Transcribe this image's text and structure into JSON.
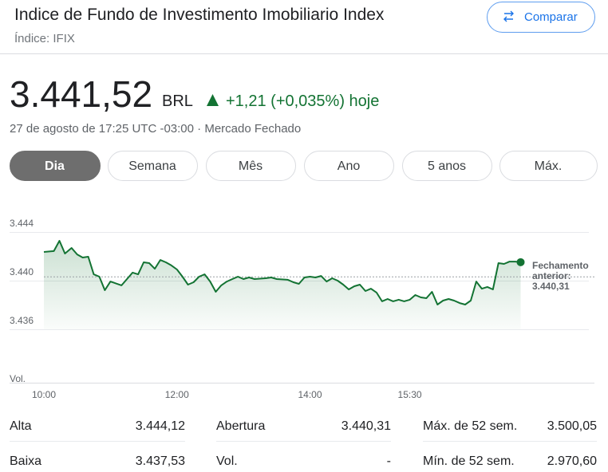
{
  "header": {
    "title": "Indice de Fundo de Investimento Imobiliario Index",
    "subtitle": "Índice: IFIX",
    "compare_button": "Comparar"
  },
  "quote": {
    "price": "3.441,52",
    "currency": "BRL",
    "change": "+1,21 (+0,035%) hoje",
    "timestamp": "27 de agosto de 17:25 UTC -03:00 · Mercado Fechado"
  },
  "tabs": {
    "items": [
      "Dia",
      "Semana",
      "Mês",
      "Ano",
      "5 anos",
      "Máx."
    ],
    "selected": 0
  },
  "chart_data": {
    "type": "line",
    "color": "#137333",
    "x": [
      "10:00",
      "10:09",
      "10:14",
      "10:19",
      "10:25",
      "10:30",
      "10:35",
      "10:40",
      "10:45",
      "10:50",
      "10:55",
      "11:00",
      "11:10",
      "11:20",
      "11:25",
      "11:30",
      "11:35",
      "11:40",
      "11:45",
      "11:50",
      "11:55",
      "12:00",
      "12:05",
      "12:10",
      "12:15",
      "12:20",
      "12:25",
      "12:30",
      "12:35",
      "12:40",
      "12:45",
      "12:50",
      "12:55",
      "13:00",
      "13:05",
      "13:10",
      "13:20",
      "13:25",
      "13:30",
      "13:40",
      "13:45",
      "13:50",
      "13:55",
      "14:00",
      "14:05",
      "14:10",
      "14:15",
      "14:20",
      "14:25",
      "14:30",
      "14:35",
      "14:40",
      "14:45",
      "14:50",
      "14:55",
      "15:00",
      "15:05",
      "15:10",
      "15:15",
      "15:20",
      "15:25",
      "15:30",
      "15:35",
      "15:40",
      "15:45",
      "15:50",
      "15:55",
      "16:00",
      "16:05",
      "16:10",
      "16:15",
      "16:20",
      "16:25",
      "16:30",
      "16:35",
      "16:40",
      "16:45",
      "16:50",
      "16:55",
      "17:00",
      "17:05",
      "17:10"
    ],
    "values": [
      3442.36,
      3442.43,
      3443.28,
      3442.23,
      3442.69,
      3442.16,
      3441.9,
      3441.97,
      3440.52,
      3440.33,
      3439.21,
      3439.93,
      3439.61,
      3440.66,
      3440.52,
      3441.51,
      3441.44,
      3440.98,
      3441.7,
      3441.51,
      3441.25,
      3440.92,
      3440.33,
      3439.67,
      3439.87,
      3440.33,
      3440.52,
      3439.93,
      3439.08,
      3439.61,
      3439.93,
      3440.13,
      3440.33,
      3440.13,
      3440.26,
      3440.13,
      3440.2,
      3440.26,
      3440.13,
      3440.07,
      3439.87,
      3439.74,
      3440.26,
      3440.33,
      3440.26,
      3440.39,
      3439.93,
      3440.2,
      3440.0,
      3439.67,
      3439.28,
      3439.54,
      3439.67,
      3439.15,
      3439.34,
      3439.02,
      3438.3,
      3438.49,
      3438.3,
      3438.43,
      3438.3,
      3438.43,
      3438.82,
      3438.62,
      3438.56,
      3439.08,
      3438.03,
      3438.36,
      3438.49,
      3438.36,
      3438.16,
      3438.03,
      3438.36,
      3439.93,
      3439.34,
      3439.48,
      3439.28,
      3441.44,
      3441.38,
      3441.57,
      3441.57,
      3441.52
    ],
    "xlim": [
      "10:00",
      "18:00"
    ],
    "xticks": [
      "10:00",
      "12:00",
      "14:00",
      "15:30"
    ],
    "ylim": [
      3436,
      3444
    ],
    "yticks": [
      {
        "value": 3444,
        "label": "3.444"
      },
      {
        "value": 3440,
        "label": "3.440"
      },
      {
        "value": 3436,
        "label": "3.436"
      }
    ],
    "grid": true,
    "volume_label": "Vol.",
    "previous_close": {
      "label": "Fechamento anterior:",
      "value": 3440.31,
      "value_label": "3.440,31"
    }
  },
  "stats": {
    "rows": [
      [
        [
          "Alta",
          "3.444,12"
        ],
        [
          "Abertura",
          "3.440,31"
        ],
        [
          "Máx. de 52 sem.",
          "3.500,05"
        ]
      ],
      [
        [
          "Baixa",
          "3.437,53"
        ],
        [
          "Vol.",
          "-"
        ],
        [
          "Mín. de 52 sem.",
          "2.970,60"
        ]
      ]
    ]
  }
}
